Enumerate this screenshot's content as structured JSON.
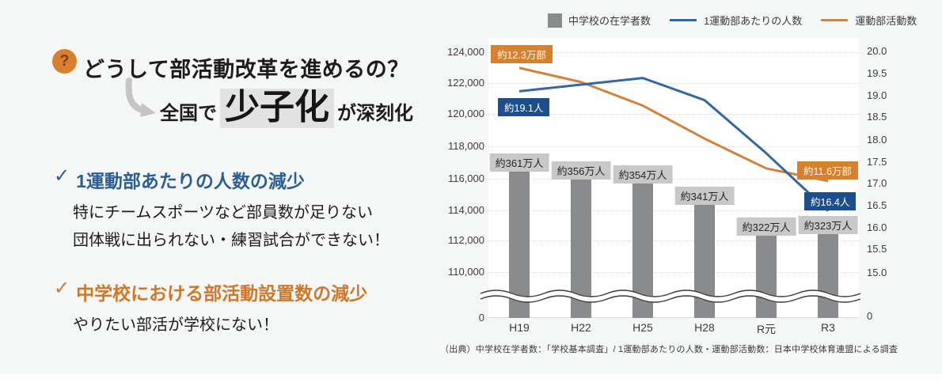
{
  "page": {
    "colors": {
      "background": "#f5f6f6",
      "accent_orange": "#d8802e",
      "accent_blue": "#1f4e8d",
      "bar_gray": "#8a8b8c",
      "line_blue": "#33679e",
      "line_orange": "#cf833e",
      "highlight_gray": "#e2e2e2"
    }
  },
  "left_panel": {
    "question_icon_glyph": "?",
    "heading": "どうして部活動改革を進めるの？",
    "subheading": {
      "prefix": "全国で",
      "highlight": "少子化",
      "suffix": "が深刻化"
    },
    "check_glyph": "✓",
    "points": [
      {
        "title": "1運動部あたりの人数の減少",
        "lines": [
          "特にチームスポーツなど部員数が足りない",
          "団体戦に出られない・練習試合ができない！"
        ]
      },
      {
        "title": "中学校における部活動設置数の減少",
        "lines": [
          "やりたい部活が学校にない！"
        ]
      }
    ]
  },
  "chart": {
    "legend": [
      {
        "label": "中学校の在学者数",
        "swatch": "square",
        "color": "#8a8b8c"
      },
      {
        "label": "1運動部あたりの人数",
        "swatch": "line",
        "color": "#33679e"
      },
      {
        "label": "運動部活動数",
        "swatch": "line",
        "color": "#c98750"
      }
    ],
    "left_axis": {
      "ticks": [
        "124,000",
        "122,000",
        "120,000",
        "118,000",
        "116,000",
        "114,000",
        "112,000",
        "110,000"
      ],
      "zero": "0"
    },
    "right_axis": {
      "ticks": [
        "20.0",
        "19.5",
        "19.0",
        "18.5",
        "18.0",
        "17.5",
        "17.0",
        "16.5",
        "16.0",
        "15.5",
        "15.0"
      ],
      "zero": "0"
    },
    "x_labels": [
      "H19",
      "H22",
      "H25",
      "H28",
      "R元",
      "R3"
    ],
    "bar_labels": [
      "約361万人",
      "約356万人",
      "約354万人",
      "約341万人",
      "約322万人",
      "約323万人"
    ],
    "annotations": {
      "orange_start": "約12.3万部",
      "blue_start": "約19.1人",
      "orange_end": "約11.6万部",
      "blue_end": "約16.4人"
    },
    "footer": "（出典）中学校在学者数：「学校基本調査」/ 1運動部あたりの人数・運動部活動数：日本中学校体育連盟による調査"
  },
  "chart_data": {
    "type": "combo",
    "categories": [
      "H19",
      "H22",
      "H25",
      "H28",
      "R元",
      "R3"
    ],
    "series": [
      {
        "name": "中学校の在学者数",
        "type": "bar",
        "axis": "none",
        "unit": "万人",
        "values": [
          361,
          356,
          354,
          341,
          322,
          323
        ],
        "color": "#8a8b8c"
      },
      {
        "name": "1運動部あたりの人数",
        "type": "line",
        "axis": "right",
        "unit": "人",
        "values": [
          19.1,
          19.25,
          19.4,
          18.9,
          17.7,
          16.4
        ],
        "color": "#33679e"
      },
      {
        "name": "運動部活動数",
        "type": "line",
        "axis": "left",
        "unit": "部",
        "values": [
          123000,
          122100,
          120600,
          118500,
          116600,
          115800
        ],
        "color": "#cf833e"
      }
    ],
    "left_axis_range": [
      110000,
      124000
    ],
    "right_axis_range": [
      15.0,
      20.0
    ],
    "axis_break": true,
    "grid": "dotted-horizontal",
    "legend_position": "top",
    "title": "",
    "xlabel": "",
    "ylabel_left": "運動部活動数",
    "ylabel_right": "1運動部あたりの人数"
  }
}
